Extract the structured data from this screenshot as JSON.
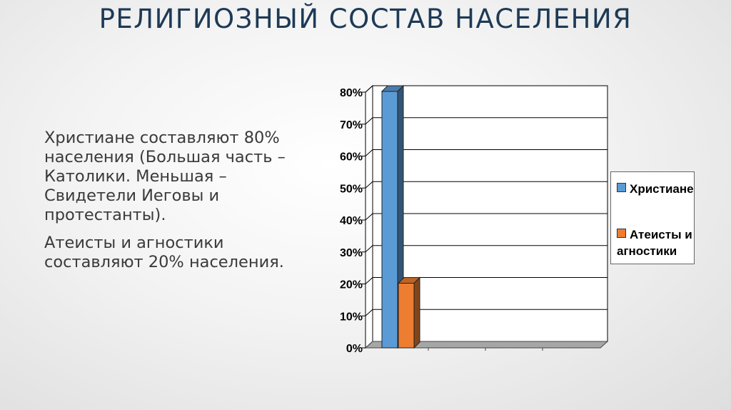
{
  "slide": {
    "title": "РЕЛИГИОЗНЫЙ СОСТАВ НАСЕЛЕНИЯ",
    "paragraphs": [
      "Христиане составляют 80% населения (Большая часть – Католики. Меньшая – Свидетели Иеговы и протестанты).",
      "Атеисты и агностики составляют 20% населения."
    ]
  },
  "chart_data": {
    "type": "bar",
    "series": [
      {
        "name": "Христиане",
        "values": [
          80
        ],
        "color": "#5b9bd5"
      },
      {
        "name": "Атеисты и агностики",
        "values": [
          20
        ],
        "color": "#ed7d31"
      }
    ],
    "yticks": [
      "0%",
      "10%",
      "20%",
      "30%",
      "40%",
      "50%",
      "60%",
      "70%",
      "80%"
    ],
    "ylim": [
      0,
      80
    ],
    "grid": true,
    "legend_position": "right",
    "style": "3d-column"
  }
}
